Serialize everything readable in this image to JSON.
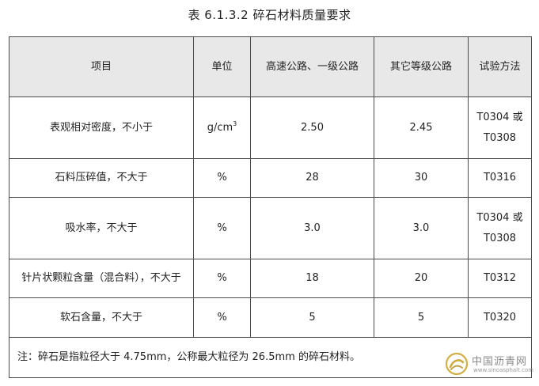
{
  "title": "表 6.1.3.2  碎石材料质量要求",
  "table": {
    "headers": [
      "项目",
      "单位",
      "高速公路、一级公路",
      "其它等级公路",
      "试验方法"
    ],
    "rows": [
      {
        "item": "表观相对密度，不小于",
        "unit_base": "g/cm",
        "unit_sup": "3",
        "highway": "2.50",
        "other": "2.45",
        "method_line1": "T0304 或",
        "method_line2": "T0308"
      },
      {
        "item": "石料压碎值，不大于",
        "unit": "%",
        "highway": "28",
        "other": "30",
        "method": "T0316"
      },
      {
        "item": "吸水率，不大于",
        "unit": "%",
        "highway": "3.0",
        "other": "3.0",
        "method_line1": "T0304 或",
        "method_line2": "T0308"
      },
      {
        "item": "针片状颗粒含量（混合料），不大于",
        "unit": "%",
        "highway": "18",
        "other": "20",
        "method": "T0312"
      },
      {
        "item": "软石含量，不大于",
        "unit": "%",
        "highway": "5",
        "other": "5",
        "method": "T0320"
      }
    ],
    "note": "注：碎石是指粒径大于 4.75mm，公称最大粒径为 26.5mm 的碎石材料。"
  },
  "watermark": {
    "name": "中国沥青网",
    "url": "www.sinoasphalt.com",
    "logo_color": "#c9a227"
  }
}
